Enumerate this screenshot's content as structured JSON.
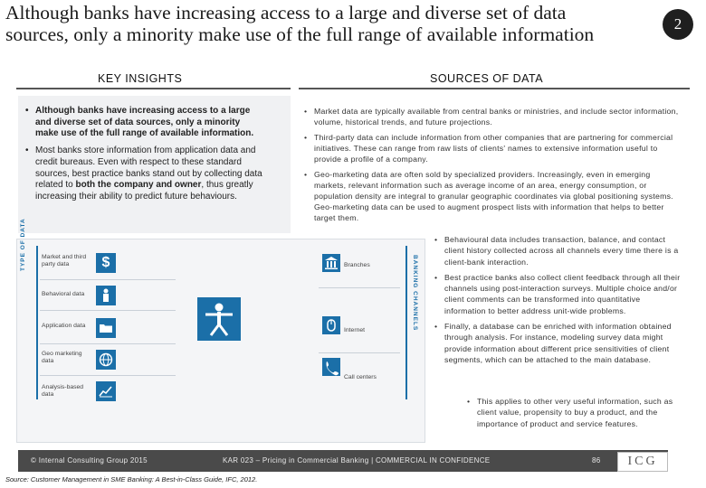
{
  "header": {
    "title": "Although banks have increasing access to a large and diverse set of data sources, only a minority make use of the full range of available information",
    "page_badge": "2"
  },
  "key_insights": {
    "heading": "KEY INSIGHTS",
    "bullets": [
      "Although banks have increasing access to a large and diverse set of data sources, only a minority make use of the full range of available information.",
      "Most banks store information from application data and credit bureaus. Even with respect to these standard sources, best practice banks stand out by collecting data related to ",
      "both the company and owner",
      ", thus greatly increasing their ability to predict future behaviours."
    ]
  },
  "sources_of_data": {
    "heading": "SOURCES OF DATA",
    "bullets": [
      "Market data are typically available from central banks or ministries, and include sector information, volume, historical trends, and future projections.",
      "Third-party data can include information from other companies that are partnering for commercial initiatives. These can range from raw lists of clients' names to extensive information useful to provide a profile of a company.",
      "Geo-marketing data are often sold by specialized providers. Increasingly, even in emerging markets, relevant information such as average income of an area, energy consumption, or population density are integral to granular geographic coordinates via global positioning systems. Geo-marketing data can be used to augment prospect lists with information that helps to better target them."
    ],
    "right_bullets": [
      "Behavioural data includes transaction, balance, and contact client history collected across all channels every time there is a client-bank interaction.",
      "Best practice banks also collect client feedback through all their channels using post-interaction surveys. Multiple choice and/or client comments can be transformed into quantitative information to better address unit-wide problems.",
      "Finally, a database can be enriched with information obtained through analysis. For instance, modeling survey data might provide information about different price sensitivities of client segments, which can be attached to the main database."
    ],
    "sub_bullet": "This applies to other very useful information, such as client value, propensity to buy a product, and the importance of product and service features."
  },
  "diagram": {
    "type_of_data_label": "TYPE OF DATA",
    "banking_channels_label": "BANKING CHANNELS",
    "data_types": [
      {
        "label": "Market and third party data",
        "icon": "dollar-icon"
      },
      {
        "label": "Behavioral data",
        "icon": "person-icon"
      },
      {
        "label": "Application data",
        "icon": "folder-icon"
      },
      {
        "label": "Geo marketing data",
        "icon": "globe-icon"
      },
      {
        "label": "Analysis-based data",
        "icon": "chart-icon"
      }
    ],
    "channels": [
      {
        "label": "Branches",
        "icon": "bank-icon"
      },
      {
        "label": "Internet",
        "icon": "mouse-icon"
      },
      {
        "label": "Call centers",
        "icon": "phone-icon"
      }
    ],
    "center_icon": "vitruvian-person-icon",
    "accent": "#1b6fa8"
  },
  "footer": {
    "copyright": "© Internal Consulting Group 2015",
    "doc_title": "KAR 023 – Pricing in Commercial Banking | COMMERCIAL IN CONFIDENCE",
    "page_number": "86",
    "logo_text": "ICG",
    "source": "Source: Customer Management in SME Banking: A Best-in-Class Guide, IFC, 2012."
  }
}
